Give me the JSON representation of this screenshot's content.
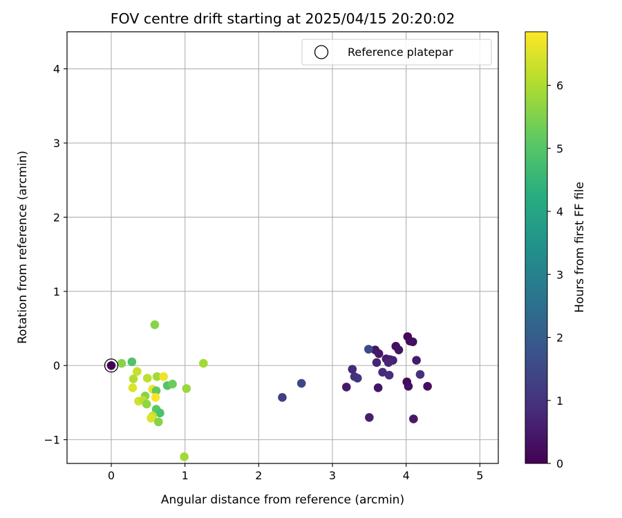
{
  "chart_data": {
    "type": "scatter",
    "title": "FOV centre drift starting at 2025/04/15 20:20:02",
    "xlabel": "Angular distance from reference (arcmin)",
    "ylabel": "Rotation from reference (arcmin)",
    "xlim": [
      -0.6,
      5.25
    ],
    "ylim": [
      -1.32,
      4.5
    ],
    "xticks": [
      0,
      1,
      2,
      3,
      4,
      5
    ],
    "yticks": [
      -1,
      0,
      1,
      2,
      3,
      4
    ],
    "grid": true,
    "legend": {
      "position": "top-right",
      "entries": [
        "Reference platepar"
      ]
    },
    "colorbar": {
      "label": "Hours from first FF file",
      "colormap": "viridis",
      "range": [
        0,
        6.85
      ],
      "ticks": [
        0,
        1,
        2,
        3,
        4,
        5,
        6
      ]
    },
    "reference_point": {
      "x": 0,
      "y": 0,
      "label": "Reference platepar"
    },
    "points": [
      {
        "x": 4.02,
        "y": 0.39,
        "c": 0.15
      },
      {
        "x": 4.05,
        "y": 0.33,
        "c": 0.2
      },
      {
        "x": 4.09,
        "y": 0.32,
        "c": 0.25
      },
      {
        "x": 3.86,
        "y": 0.26,
        "c": 0.3
      },
      {
        "x": 3.9,
        "y": 0.21,
        "c": 0.35
      },
      {
        "x": 3.58,
        "y": 0.21,
        "c": 0.4
      },
      {
        "x": 3.63,
        "y": 0.16,
        "c": 0.45
      },
      {
        "x": 4.14,
        "y": 0.07,
        "c": 0.5
      },
      {
        "x": 3.73,
        "y": 0.09,
        "c": 0.55
      },
      {
        "x": 3.78,
        "y": 0.08,
        "c": 0.6
      },
      {
        "x": 3.82,
        "y": 0.07,
        "c": 0.65
      },
      {
        "x": 3.6,
        "y": 0.04,
        "c": 0.7
      },
      {
        "x": 3.76,
        "y": 0.04,
        "c": 0.75
      },
      {
        "x": 3.27,
        "y": -0.05,
        "c": 0.8
      },
      {
        "x": 3.68,
        "y": -0.09,
        "c": 0.85
      },
      {
        "x": 3.77,
        "y": -0.13,
        "c": 0.9
      },
      {
        "x": 4.19,
        "y": -0.12,
        "c": 0.95
      },
      {
        "x": 3.3,
        "y": -0.15,
        "c": 1.0
      },
      {
        "x": 3.34,
        "y": -0.17,
        "c": 1.05
      },
      {
        "x": 4.01,
        "y": -0.22,
        "c": 0.2
      },
      {
        "x": 4.03,
        "y": -0.28,
        "c": 0.3
      },
      {
        "x": 3.19,
        "y": -0.29,
        "c": 0.5
      },
      {
        "x": 3.62,
        "y": -0.3,
        "c": 0.4
      },
      {
        "x": 4.29,
        "y": -0.28,
        "c": 0.25
      },
      {
        "x": 3.5,
        "y": -0.7,
        "c": 0.6
      },
      {
        "x": 4.1,
        "y": -0.72,
        "c": 0.45
      },
      {
        "x": 3.49,
        "y": 0.22,
        "c": 1.55
      },
      {
        "x": 2.58,
        "y": -0.24,
        "c": 1.45
      },
      {
        "x": 2.32,
        "y": -0.43,
        "c": 1.3
      },
      {
        "x": 0.28,
        "y": 0.05,
        "c": 4.95
      },
      {
        "x": 0.14,
        "y": 0.03,
        "c": 5.6
      },
      {
        "x": 0.59,
        "y": 0.55,
        "c": 5.6
      },
      {
        "x": 1.25,
        "y": 0.03,
        "c": 5.9
      },
      {
        "x": 0.35,
        "y": -0.08,
        "c": 6.3
      },
      {
        "x": 0.3,
        "y": -0.18,
        "c": 6.1
      },
      {
        "x": 0.49,
        "y": -0.17,
        "c": 6.2
      },
      {
        "x": 0.62,
        "y": -0.15,
        "c": 5.9
      },
      {
        "x": 0.71,
        "y": -0.15,
        "c": 6.7
      },
      {
        "x": 0.29,
        "y": -0.3,
        "c": 6.5
      },
      {
        "x": 0.56,
        "y": -0.32,
        "c": 6.6
      },
      {
        "x": 0.61,
        "y": -0.34,
        "c": 5.2
      },
      {
        "x": 0.76,
        "y": -0.27,
        "c": 5.0
      },
      {
        "x": 0.83,
        "y": -0.25,
        "c": 5.3
      },
      {
        "x": 1.02,
        "y": -0.31,
        "c": 5.8
      },
      {
        "x": 0.46,
        "y": -0.41,
        "c": 5.6
      },
      {
        "x": 0.6,
        "y": -0.43,
        "c": 6.8
      },
      {
        "x": 0.37,
        "y": -0.48,
        "c": 6.4
      },
      {
        "x": 0.43,
        "y": -0.47,
        "c": 6.2
      },
      {
        "x": 0.48,
        "y": -0.52,
        "c": 5.7
      },
      {
        "x": 0.61,
        "y": -0.59,
        "c": 5.1
      },
      {
        "x": 0.66,
        "y": -0.64,
        "c": 4.9
      },
      {
        "x": 0.56,
        "y": -0.68,
        "c": 6.3
      },
      {
        "x": 0.54,
        "y": -0.71,
        "c": 6.5
      },
      {
        "x": 0.64,
        "y": -0.76,
        "c": 5.6
      },
      {
        "x": 0.99,
        "y": -1.23,
        "c": 5.9
      }
    ]
  }
}
